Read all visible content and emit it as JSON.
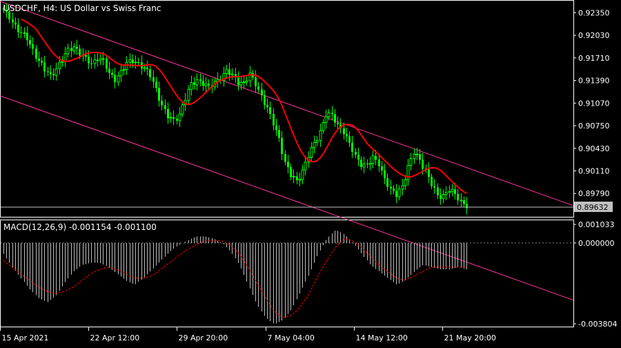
{
  "main_chart": {
    "title": "USDCHF, H4:  US Dollar vs Swiss Franc",
    "current_price": "0.89632",
    "y_ticks": [
      "0.92350",
      "0.92030",
      "0.91710",
      "0.91390",
      "0.91070",
      "0.90750",
      "0.90430",
      "0.90110",
      "0.89790"
    ],
    "x_ticks": [
      "15 Apr 2021",
      "22 Apr 12:00",
      "29 Apr 20:00",
      "7 May 04:00",
      "14 May 12:00",
      "21 May 20:00"
    ]
  },
  "macd_panel": {
    "label": "MACD(12,26,9) -0.001154 -0.001100",
    "y_ticks": [
      "0.001033",
      "0.000000",
      "-0.003804"
    ]
  },
  "colors": {
    "background": "#000000",
    "candles": "#00ff00",
    "moving_average": "#ff0000",
    "channel": "#ff3aa0",
    "histogram": "#c0c0c0",
    "signal": "#ff0000",
    "axis": "#ffffff"
  },
  "chart_data": [
    {
      "type": "candlestick",
      "title": "USDCHF, H4:  US Dollar vs Swiss Franc",
      "ylim": [
        0.8946,
        0.9252
      ],
      "last_price": 0.89632,
      "close_series": [
        0.9236,
        0.9229,
        0.9217,
        0.9205,
        0.9198,
        0.9183,
        0.9167,
        0.9153,
        0.9146,
        0.9157,
        0.9168,
        0.9181,
        0.9188,
        0.9178,
        0.9168,
        0.9163,
        0.9172,
        0.9166,
        0.9148,
        0.9142,
        0.9151,
        0.9162,
        0.9168,
        0.9164,
        0.9155,
        0.9146,
        0.9128,
        0.9103,
        0.9087,
        0.9083,
        0.9092,
        0.9113,
        0.9133,
        0.9141,
        0.9135,
        0.9128,
        0.9137,
        0.9144,
        0.9151,
        0.9146,
        0.9138,
        0.9135,
        0.9146,
        0.9135,
        0.9118,
        0.9098,
        0.9078,
        0.9058,
        0.9022,
        0.9004,
        0.8997,
        0.9012,
        0.9032,
        0.9049,
        0.9068,
        0.9091,
        0.9088,
        0.9076,
        0.9068,
        0.9048,
        0.9031,
        0.9022,
        0.9019,
        0.9028,
        0.9022,
        0.9001,
        0.8982,
        0.8977,
        0.8991,
        0.9016,
        0.9036,
        0.9027,
        0.9012,
        0.8991,
        0.8975,
        0.8977,
        0.8985,
        0.8976,
        0.8968,
        0.8963
      ]
    },
    {
      "type": "bar",
      "title": "MACD(12,26,9) -0.001154 -0.001100",
      "ylim": [
        -0.003804,
        0.001033
      ],
      "macd": [
        -0.0005,
        -0.0011,
        -0.0016,
        -0.0021,
        -0.0025,
        -0.0027,
        -0.0024,
        -0.0018,
        -0.0013,
        -0.001,
        -0.0009,
        -0.0009,
        -0.0011,
        -0.0014,
        -0.0017,
        -0.0019,
        -0.0016,
        -0.0012,
        -0.0008,
        -0.0004,
        -0.0001,
        0.0001,
        0.0003,
        0.0003,
        0.0002,
        0.0,
        -0.0004,
        -0.001,
        -0.0019,
        -0.0028,
        -0.0034,
        -0.0037,
        -0.0035,
        -0.003,
        -0.0022,
        -0.0014,
        -0.0005,
        0.0002,
        0.0006,
        0.0004,
        0.0,
        -0.0005,
        -0.001,
        -0.0013,
        -0.0016,
        -0.0019,
        -0.0017,
        -0.0013,
        -0.001,
        -0.0011,
        -0.0012,
        -0.0012,
        -0.0011,
        -0.0012
      ],
      "signal": [
        -0.0008,
        -0.0011,
        -0.0014,
        -0.0017,
        -0.002,
        -0.0022,
        -0.0023,
        -0.0022,
        -0.002,
        -0.0017,
        -0.0014,
        -0.0012,
        -0.0011,
        -0.0012,
        -0.0014,
        -0.0016,
        -0.0016,
        -0.0015,
        -0.0012,
        -0.0009,
        -0.0006,
        -0.0003,
        -0.0001,
        0.0001,
        0.0001,
        0.0001,
        -0.0001,
        -0.0005,
        -0.0011,
        -0.0018,
        -0.0025,
        -0.0031,
        -0.0034,
        -0.0033,
        -0.0029,
        -0.0023,
        -0.0015,
        -0.0008,
        -0.0002,
        0.0002,
        0.0001,
        -0.0002,
        -0.0006,
        -0.001,
        -0.0013,
        -0.0016,
        -0.0017,
        -0.0015,
        -0.0013,
        -0.0011,
        -0.0011,
        -0.0011,
        -0.0011,
        -0.0011
      ]
    }
  ]
}
